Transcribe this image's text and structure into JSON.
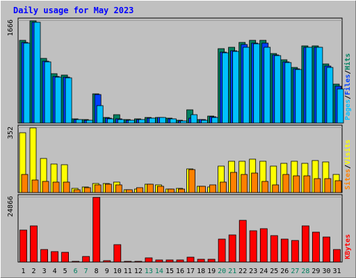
{
  "chart_data": {
    "type": "bar",
    "title": "Daily usage for May 2023",
    "categories": [
      "1",
      "2",
      "3",
      "4",
      "5",
      "6",
      "7",
      "8",
      "9",
      "10",
      "11",
      "12",
      "13",
      "14",
      "15",
      "16",
      "17",
      "18",
      "19",
      "20",
      "21",
      "22",
      "23",
      "24",
      "25",
      "26",
      "27",
      "28",
      "29",
      "30",
      "31"
    ],
    "weekend_days": [
      "6",
      "7",
      "13",
      "14",
      "20",
      "21",
      "27",
      "28"
    ],
    "panels": [
      {
        "id": "hits-files-pages",
        "max_label": "1666",
        "ylim": [
          0,
          1666
        ],
        "legend": [
          {
            "label": "Pages",
            "color": "#00c0ff"
          },
          {
            "label": "Files",
            "color": "#0040ff"
          },
          {
            "label": "Hits",
            "color": "#008060"
          }
        ],
        "series": [
          {
            "name": "Hits",
            "color": "#008060",
            "values": [
              1350,
              1666,
              1050,
              800,
              780,
              65,
              55,
              480,
              85,
              140,
              55,
              65,
              85,
              95,
              75,
              40,
              210,
              60,
              110,
              1210,
              1230,
              1320,
              1350,
              1350,
              1130,
              1030,
              910,
              1260,
              1260,
              960,
              630
            ]
          },
          {
            "name": "Files",
            "color": "#0040ff",
            "values": [
              1320,
              1640,
              1010,
              760,
              750,
              60,
              50,
              460,
              75,
              70,
              50,
              60,
              80,
              90,
              70,
              35,
              75,
              55,
              100,
              1160,
              1180,
              1280,
              1300,
              1300,
              1110,
              1000,
              880,
              1230,
              1230,
              930,
              600
            ]
          },
          {
            "name": "Pages",
            "color": "#00c0ff",
            "values": [
              1300,
              1640,
              1000,
              750,
              740,
              60,
              50,
              280,
              70,
              60,
              50,
              60,
              80,
              85,
              70,
              30,
              140,
              50,
              85,
              1150,
              1170,
              1230,
              1290,
              1240,
              1100,
              990,
              870,
              1230,
              1230,
              910,
              560
            ]
          }
        ]
      },
      {
        "id": "visits-sites",
        "max_label": "352",
        "ylim": [
          0,
          352
        ],
        "legend": [
          {
            "label": "Sites",
            "color": "#ff8000"
          },
          {
            "label": "Visits",
            "color": "#ffff00"
          }
        ],
        "series": [
          {
            "name": "Visits",
            "color": "#ffff00",
            "values": [
              325,
              352,
              185,
              155,
              150,
              22,
              30,
              50,
              50,
              55,
              15,
              20,
              45,
              40,
              20,
              22,
              130,
              35,
              30,
              145,
              170,
              170,
              180,
              170,
              145,
              160,
              170,
              160,
              175,
              165,
              100
            ]
          },
          {
            "name": "Sites",
            "color": "#ff8000",
            "values": [
              100,
              70,
              60,
              55,
              55,
              15,
              25,
              40,
              45,
              40,
              15,
              25,
              45,
              35,
              20,
              18,
              125,
              35,
              40,
              55,
              110,
              100,
              105,
              60,
              40,
              100,
              90,
              90,
              75,
              75,
              65
            ]
          }
        ]
      },
      {
        "id": "kbytes",
        "max_label": "24866",
        "ylim": [
          0,
          24866
        ],
        "legend": [
          {
            "label": "KBytes",
            "color": "#ff0000"
          }
        ],
        "series": [
          {
            "name": "KBytes",
            "color": "#ff0000",
            "values": [
              12200,
              14000,
              4800,
              3900,
              3700,
              180,
              2200,
              24866,
              500,
              6700,
              220,
              250,
              1500,
              800,
              800,
              800,
              2000,
              1000,
              1100,
              8800,
              10500,
              16000,
              12000,
              12800,
              10100,
              8900,
              8300,
              13800,
              11500,
              9600,
              4800
            ]
          }
        ]
      }
    ]
  }
}
